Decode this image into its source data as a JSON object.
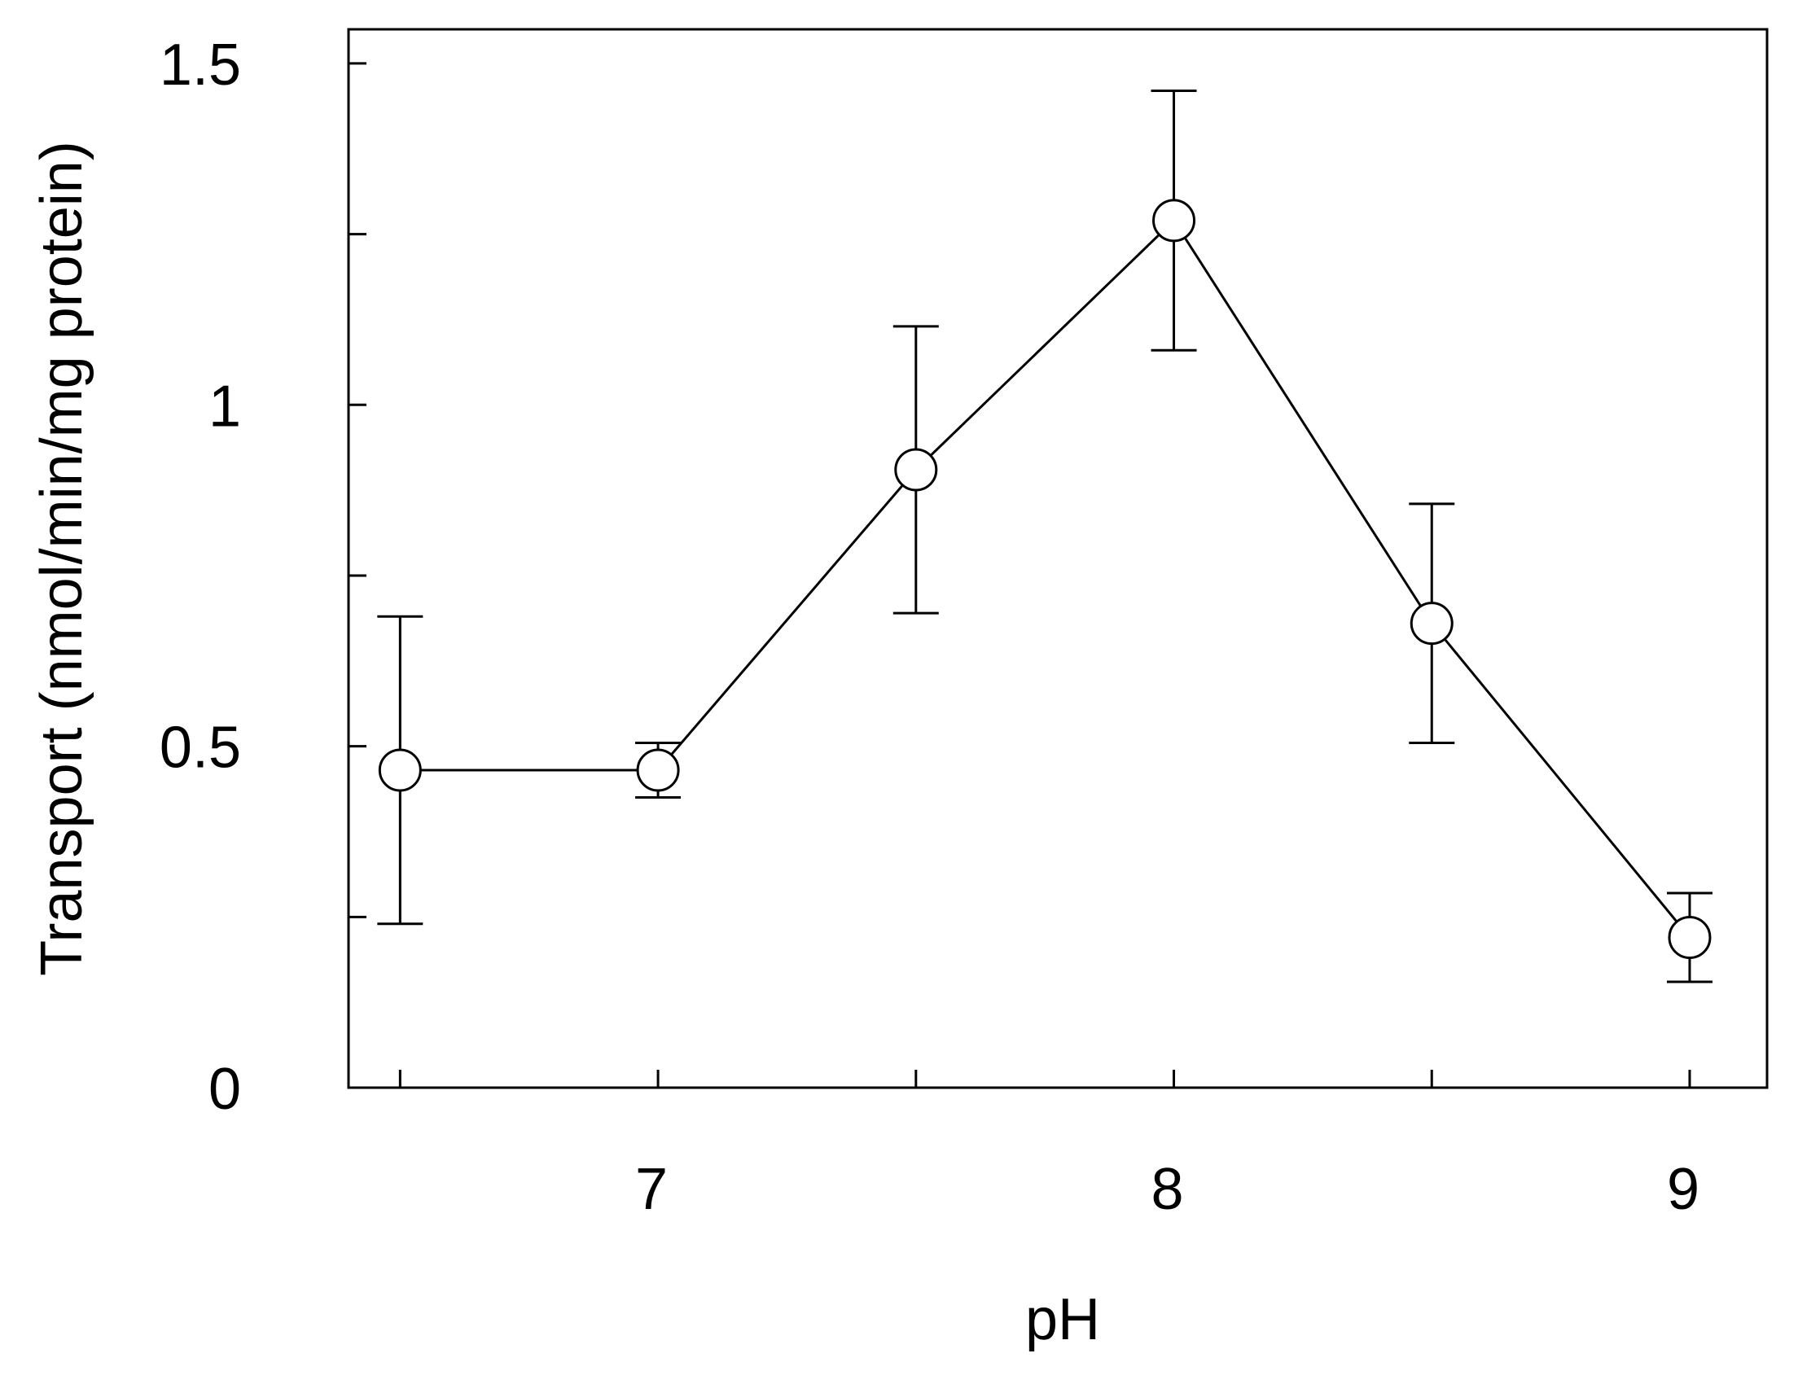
{
  "chart_data": {
    "type": "line",
    "title": "",
    "xlabel": "pH",
    "ylabel": "Transport (nmol/min/mg protein)",
    "xlim": [
      6.4,
      9.15
    ],
    "ylim": [
      0,
      1.55
    ],
    "x_ticks": [
      6.5,
      7,
      7.5,
      8,
      8.5,
      9
    ],
    "x_tick_labels": [
      "",
      "7",
      "",
      "8",
      "",
      "9"
    ],
    "y_ticks": [
      0,
      0.25,
      0.5,
      0.75,
      1,
      1.25,
      1.5
    ],
    "y_tick_labels": [
      "0",
      "",
      "0.5",
      "",
      "1",
      "",
      "1.5"
    ],
    "grid": false,
    "legend": "none",
    "series": [
      {
        "x": [
          6.5,
          7.0,
          7.5,
          8.0,
          8.5,
          9.0
        ],
        "y": [
          0.465,
          0.465,
          0.905,
          1.27,
          0.68,
          0.22
        ],
        "error": [
          0.225,
          0.04,
          0.21,
          0.19,
          0.175,
          0.065
        ],
        "marker": "open-circle",
        "color": "#000000"
      }
    ]
  }
}
